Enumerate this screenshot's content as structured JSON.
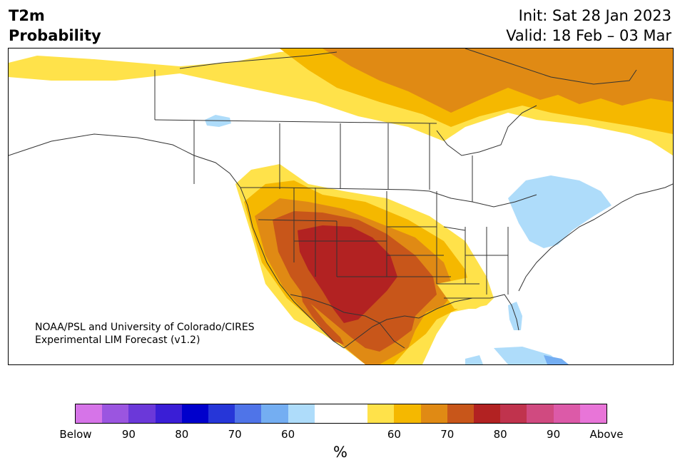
{
  "title": {
    "left_line1": "T2m",
    "left_line2": "Probability",
    "init": "Init: Sat 28 Jan 2023",
    "valid": "Valid: 18 Feb – 03 Mar"
  },
  "credit": {
    "line1": "NOAA/PSL and University of Colorado/CIRES",
    "line2": "Experimental LIM Forecast (v1.2)"
  },
  "colorbar": {
    "colors": [
      "#d674e8",
      "#9b55e0",
      "#6b38d9",
      "#3a1ed6",
      "#0000cc",
      "#2636d8",
      "#4f74e8",
      "#74aef2",
      "#aedcfa",
      "#ffffff",
      "#ffffff",
      "#ffe24a",
      "#f5b800",
      "#e08a14",
      "#c8561a",
      "#b22222",
      "#c0334d",
      "#d04a80",
      "#dc5aa8",
      "#e875d8"
    ],
    "ticks": [
      "Below",
      "90",
      "80",
      "70",
      "60",
      "60",
      "70",
      "80",
      "90",
      "Above"
    ],
    "unit": "%"
  }
}
